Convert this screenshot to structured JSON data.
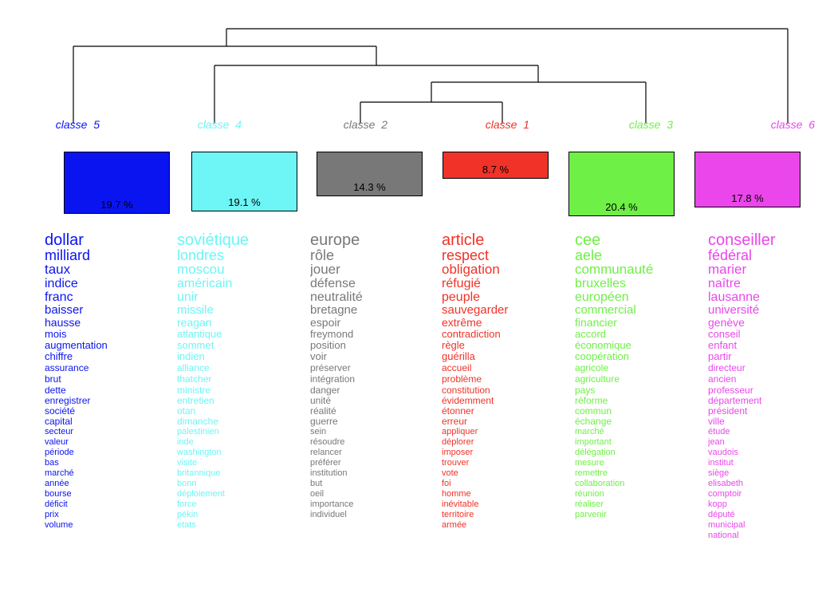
{
  "chart_data": {
    "type": "dendrogram",
    "classes": [
      {
        "label": "classe  5",
        "percent": "19.7 %",
        "value": 19.7,
        "color": "#0a14f0",
        "words": [
          "dollar",
          "milliard",
          "taux",
          "indice",
          "franc",
          "baisser",
          "hausse",
          "mois",
          "augmentation",
          "chiffre",
          "assurance",
          "brut",
          "dette",
          "enregistrer",
          "société",
          "capital",
          "secteur",
          "valeur",
          "période",
          "bas",
          "marché",
          "année",
          "bourse",
          "déficit",
          "prix",
          "volume"
        ]
      },
      {
        "label": "classe  4",
        "percent": "19.1 %",
        "value": 19.1,
        "color": "#6ef5f5",
        "words": [
          "soviétique",
          "londres",
          "moscou",
          "américain",
          "unir",
          "missile",
          "reagan",
          "atlantique",
          "sommet",
          "indien",
          "alliance",
          "thatcher",
          "ministre",
          "entretien",
          "otan",
          "dimanche",
          "palestinien",
          "inde",
          "washington",
          "visite",
          "britannique",
          "bonn",
          "déploiement",
          "force",
          "pékin",
          "etats"
        ]
      },
      {
        "label": "classe  2",
        "percent": "14.3 %",
        "value": 14.3,
        "color": "#787878",
        "words": [
          "europe",
          "rôle",
          "jouer",
          "défense",
          "neutralité",
          "bretagne",
          "espoir",
          "freymond",
          "position",
          "voir",
          "préserver",
          "intégration",
          "danger",
          "unité",
          "réalité",
          "guerre",
          "sein",
          "résoudre",
          "relancer",
          "préférer",
          "institution",
          "but",
          "oeil",
          "importance",
          "individuel"
        ]
      },
      {
        "label": "classe  1",
        "percent": "8.7 %",
        "value": 8.7,
        "color": "#f03228",
        "words": [
          "article",
          "respect",
          "obligation",
          "réfugié",
          "peuple",
          "sauvegarder",
          "extrême",
          "contradiction",
          "règle",
          "guérilla",
          "accueil",
          "problème",
          "constitution",
          "évidemment",
          "étonner",
          "erreur",
          "appliquer",
          "déplorer",
          "imposer",
          "trouver",
          "vote",
          "foi",
          "homme",
          "inévitable",
          "territoire",
          "armée"
        ]
      },
      {
        "label": "classe  3",
        "percent": "20.4 %",
        "value": 20.4,
        "color": "#6ef046",
        "words": [
          "cee",
          "aele",
          "communauté",
          "bruxelles",
          "européen",
          "commercial",
          "financier",
          "accord",
          "économique",
          "coopération",
          "agricole",
          "agriculture",
          "pays",
          "réforme",
          "commun",
          "échange",
          "marché",
          "important",
          "délégation",
          "mesure",
          "remettre",
          "collaboration",
          "réunion",
          "réaliser",
          "parvenir"
        ]
      },
      {
        "label": "classe  6",
        "percent": "17.8 %",
        "value": 17.8,
        "color": "#eb46eb",
        "words": [
          "conseiller",
          "fédéral",
          "marier",
          "naître",
          "lausanne",
          "université",
          "genève",
          "conseil",
          "enfant",
          "partir",
          "directeur",
          "ancien",
          "professeur",
          "département",
          "président",
          "ville",
          "étude",
          "jean",
          "vaudois",
          "institut",
          "siège",
          "elisabeth",
          "comptoir",
          "kopp",
          "député",
          "municipal",
          "national"
        ]
      }
    ]
  }
}
